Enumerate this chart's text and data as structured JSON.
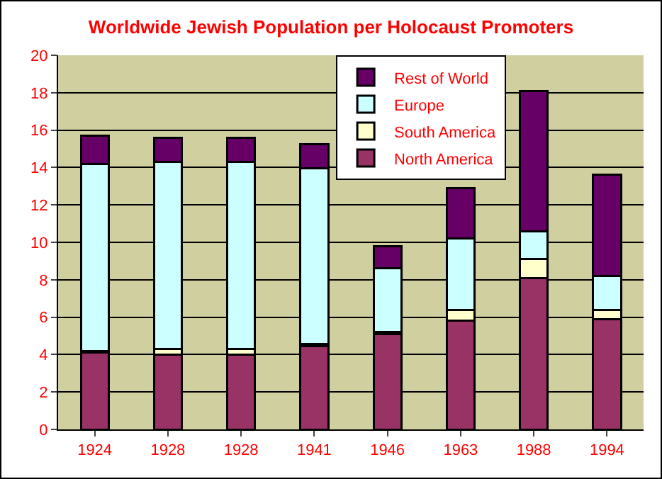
{
  "chart_data": {
    "type": "bar",
    "title": "Worldwide Jewish Population per Holocaust Promoters",
    "stacked": true,
    "categories": [
      "1924",
      "1928",
      "1928",
      "1941",
      "1946",
      "1963",
      "1988",
      "1994"
    ],
    "series": [
      {
        "name": "North America",
        "color": "#993366",
        "values": [
          4.1,
          4.0,
          4.0,
          4.45,
          5.1,
          5.8,
          8.1,
          5.9
        ]
      },
      {
        "name": "South America",
        "color": "#ffffcc",
        "values": [
          0.1,
          0.3,
          0.3,
          0.1,
          0.1,
          0.6,
          1.0,
          0.5
        ]
      },
      {
        "name": "Europe",
        "color": "#ccffff",
        "values": [
          10.0,
          10.0,
          10.0,
          9.4,
          3.4,
          3.8,
          1.5,
          1.8
        ]
      },
      {
        "name": "Rest of World",
        "color": "#660066",
        "values": [
          1.5,
          1.3,
          1.3,
          1.3,
          1.2,
          2.7,
          7.5,
          5.4
        ]
      }
    ],
    "ylim": [
      0,
      20
    ],
    "yticks": [
      0,
      2,
      4,
      6,
      8,
      10,
      12,
      14,
      16,
      18,
      20
    ],
    "grid": "y",
    "legend": "top"
  }
}
